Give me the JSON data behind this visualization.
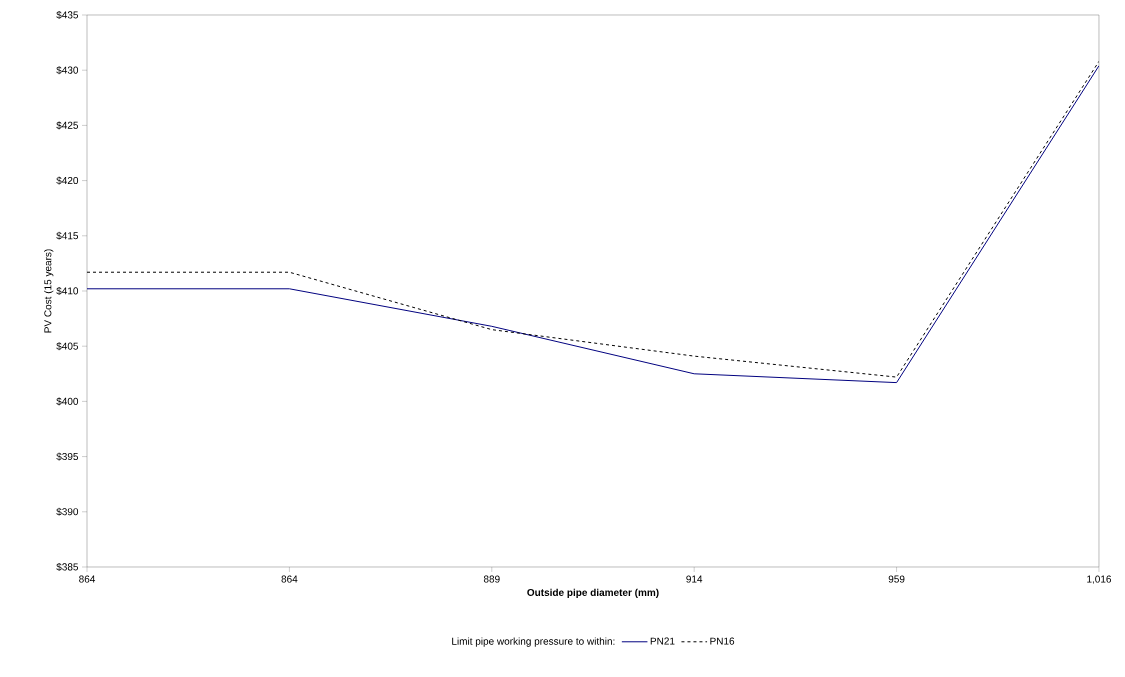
{
  "chart_data": {
    "type": "line",
    "xlabel": "Outside pipe diameter (mm)",
    "ylabel": "PV Cost (15 years)",
    "legend_title": "Limit pipe working pressure to within:",
    "categories": [
      "864",
      "864",
      "889",
      "914",
      "959",
      "1,016"
    ],
    "series": [
      {
        "name": "PN21",
        "color": "#000080",
        "line_style": "solid",
        "values": [
          410.2,
          410.2,
          406.8,
          402.5,
          401.7,
          430.4
        ]
      },
      {
        "name": "PN16",
        "color": "#000000",
        "line_style": "dashed",
        "values": [
          411.7,
          411.7,
          406.5,
          404.1,
          402.2,
          430.8
        ]
      }
    ],
    "ylim": [
      385,
      435
    ],
    "yticks": [
      {
        "value": 385,
        "label": "$385"
      },
      {
        "value": 390,
        "label": "$390"
      },
      {
        "value": 395,
        "label": "$395"
      },
      {
        "value": 400,
        "label": "$400"
      },
      {
        "value": 405,
        "label": "$405"
      },
      {
        "value": 410,
        "label": "$410"
      },
      {
        "value": 415,
        "label": "$415"
      },
      {
        "value": 420,
        "label": "$420"
      },
      {
        "value": 425,
        "label": "$425"
      },
      {
        "value": 430,
        "label": "$430"
      },
      {
        "value": 435,
        "label": "$435"
      }
    ],
    "grid": false,
    "legend": "bottom",
    "marker": "none"
  }
}
